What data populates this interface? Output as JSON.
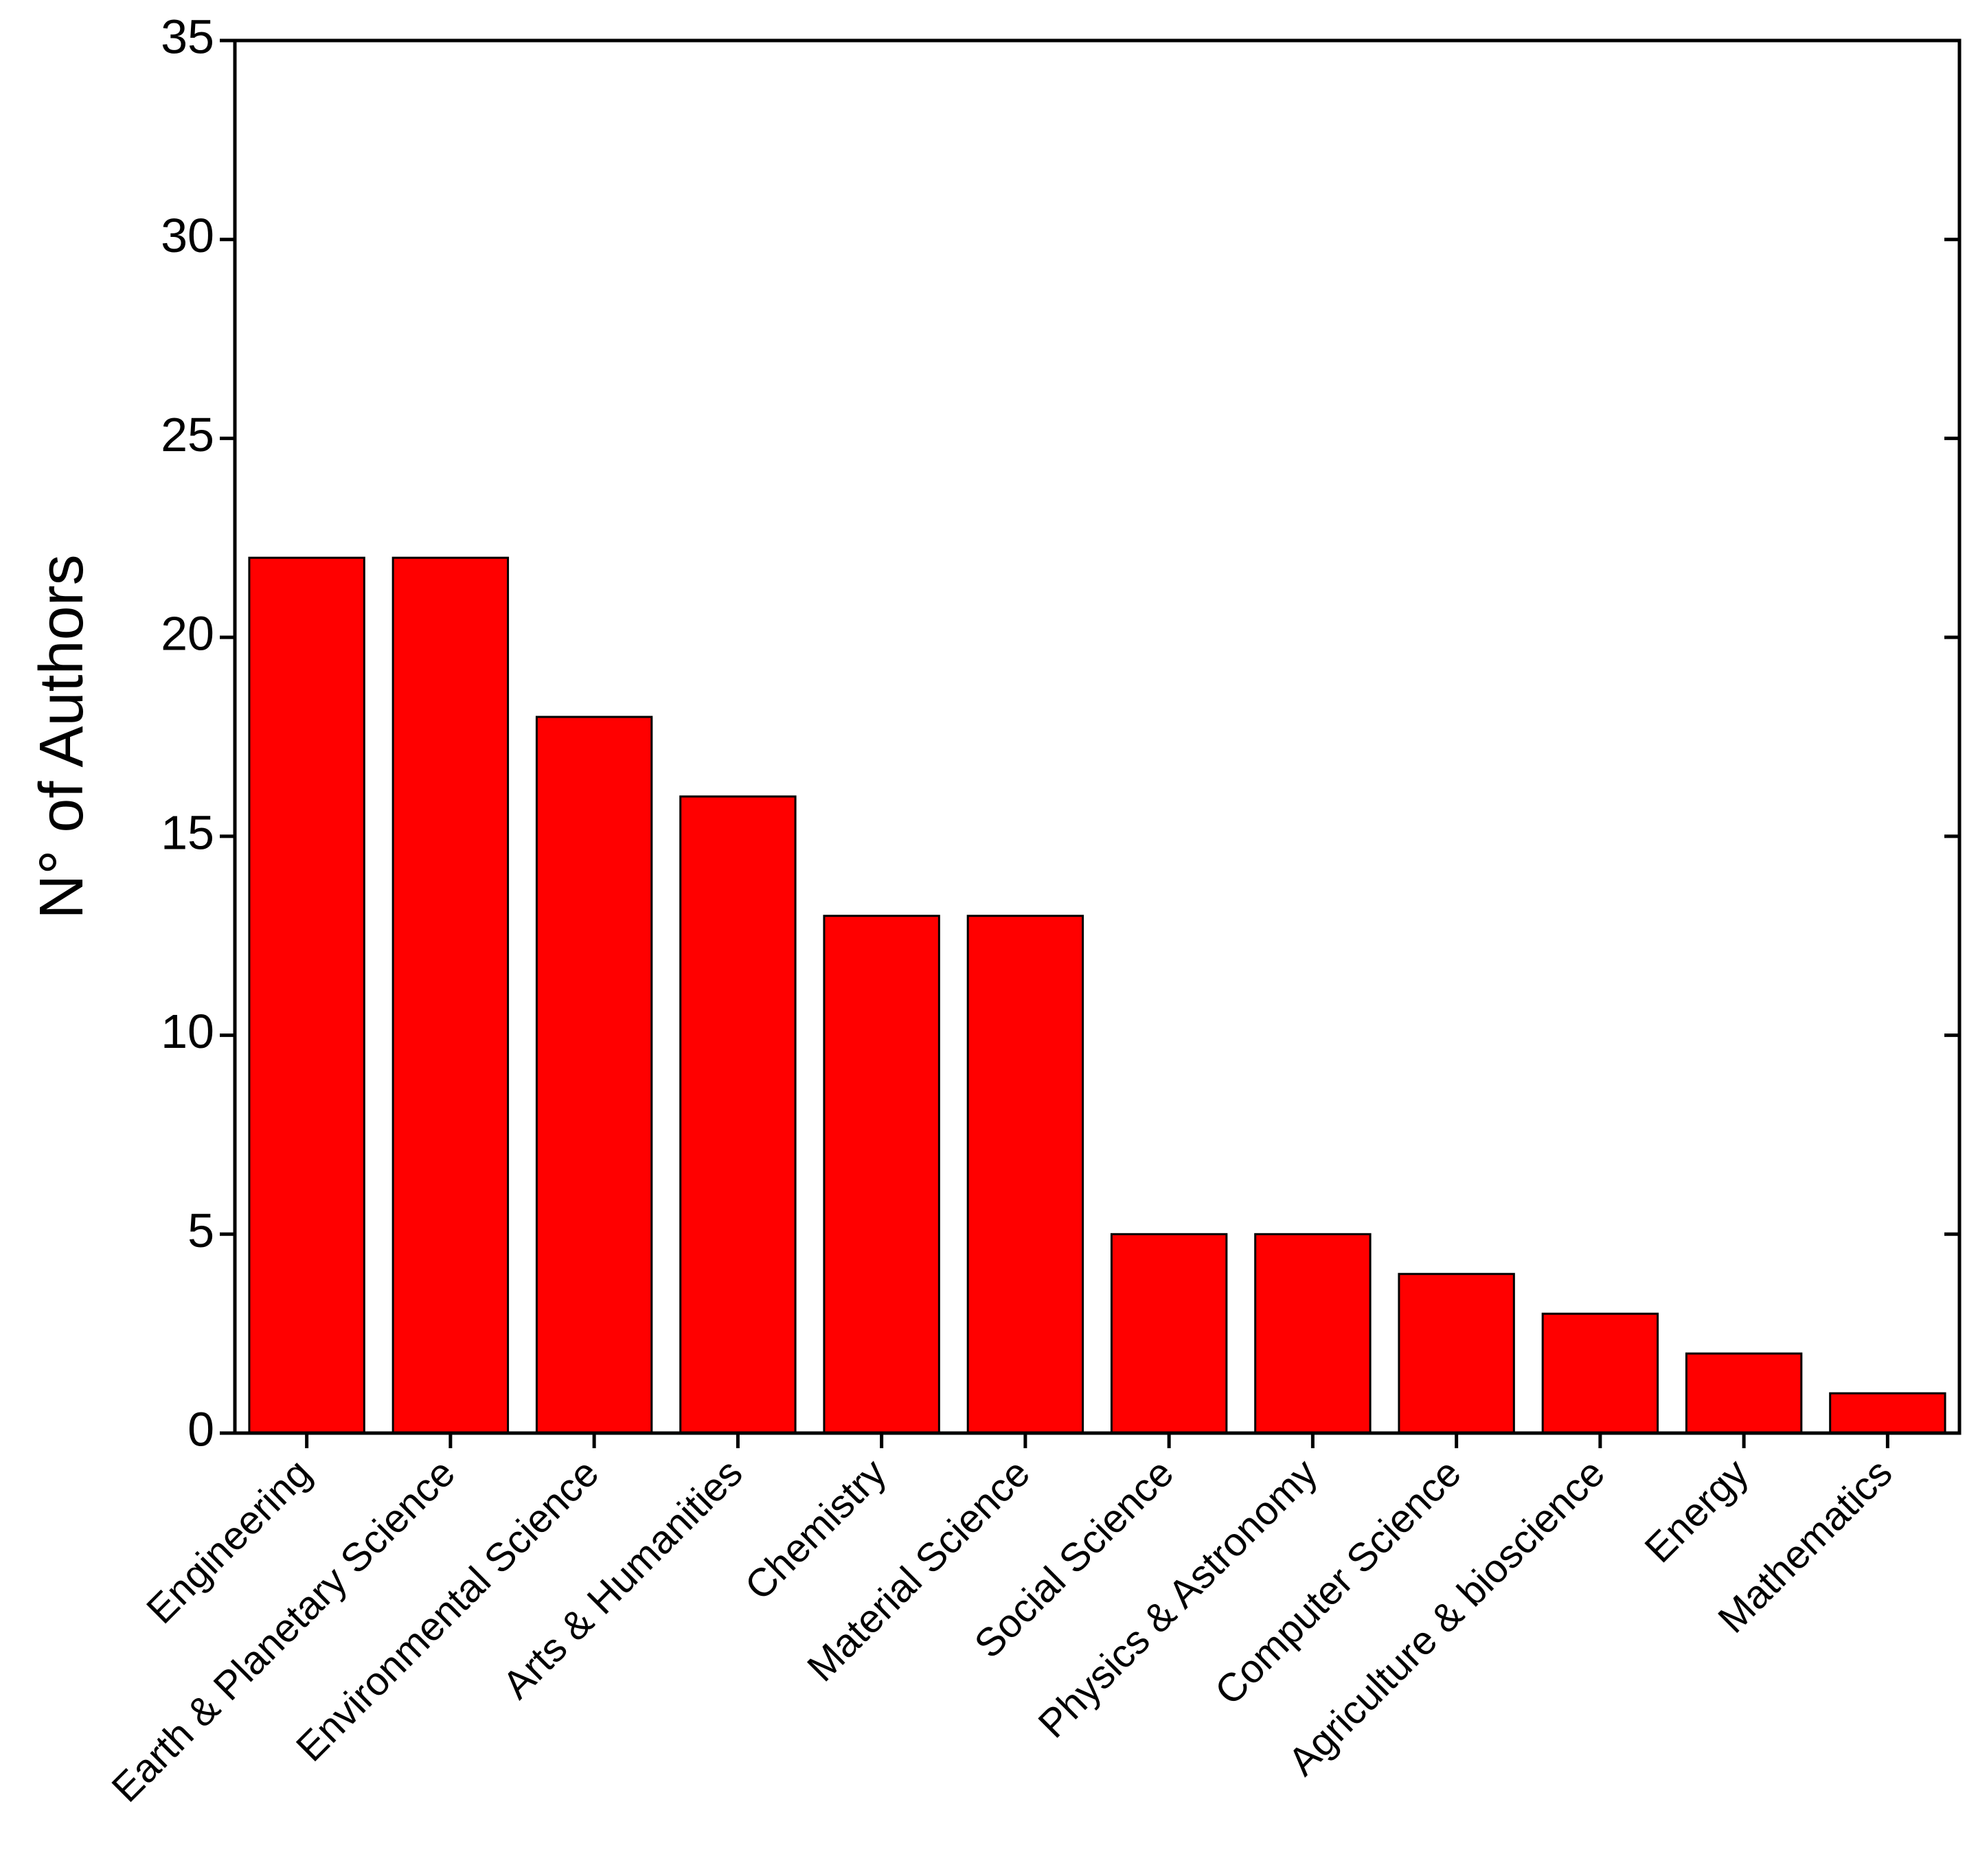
{
  "chart_data": {
    "type": "bar",
    "y_label": "N° of Authors",
    "categories": [
      "Engineering",
      "Earth & Planetary Science",
      "Environmental Science",
      "Arts & Humanities",
      "Chemistry",
      "Material Science",
      "Social Science",
      "Physics &  Astronomy",
      "Computer Science",
      "Agriculture & bioscience",
      "Energy",
      "Mathematics"
    ],
    "values": [
      22,
      22,
      18,
      16,
      13,
      13,
      5,
      5,
      4,
      3,
      2,
      1
    ],
    "color": "#ff0000",
    "ylim": [
      0,
      35
    ],
    "yticks": [
      0,
      5,
      10,
      15,
      20,
      25,
      30,
      35
    ],
    "grid": false
  }
}
